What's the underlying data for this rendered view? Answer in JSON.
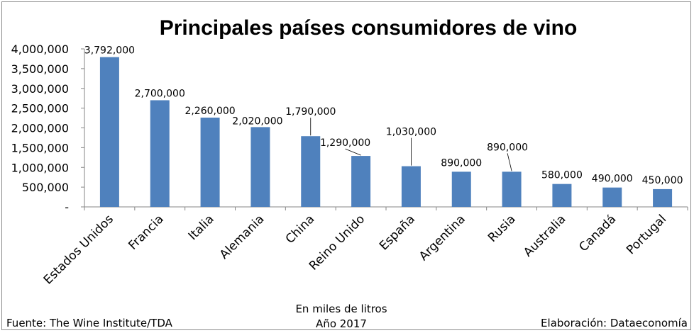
{
  "chart_data": {
    "type": "bar",
    "title": "Principales países consumidores de vino",
    "categories": [
      "Estados Unidos",
      "Francia",
      "Italia",
      "Alemania",
      "China",
      "Reino Unido",
      "España",
      "Argentina",
      "Rusia",
      "Australia",
      "Canadá",
      "Portugal"
    ],
    "values": [
      3792000,
      2700000,
      2260000,
      2020000,
      1790000,
      1290000,
      1030000,
      890000,
      890000,
      580000,
      490000,
      450000
    ],
    "data_labels": [
      "3,792,000",
      "2,700,000",
      "2,260,000",
      "2,020,000",
      "1,790,000",
      "1,290,000",
      "1,030,000",
      "890,000",
      "890,000",
      "580,000",
      "490,000",
      "450,000"
    ],
    "y_ticks": [
      0,
      500000,
      1000000,
      1500000,
      2000000,
      2500000,
      3000000,
      3500000,
      4000000
    ],
    "y_tick_labels": [
      "-",
      "500,000",
      "1,000,000",
      "1,500,000",
      "2,000,000",
      "2,500,000",
      "3,000,000",
      "3,500,000",
      "4,000,000"
    ],
    "ylim": [
      0,
      4000000
    ],
    "grid": false,
    "legend": "none",
    "bar_color": "#4f81bd",
    "notes": {
      "source": "Fuente: The Wine Institute/TDA",
      "unit": "En miles de litros",
      "year": "Año 2017",
      "credit": "Elaboración: Dataeconomía"
    }
  }
}
